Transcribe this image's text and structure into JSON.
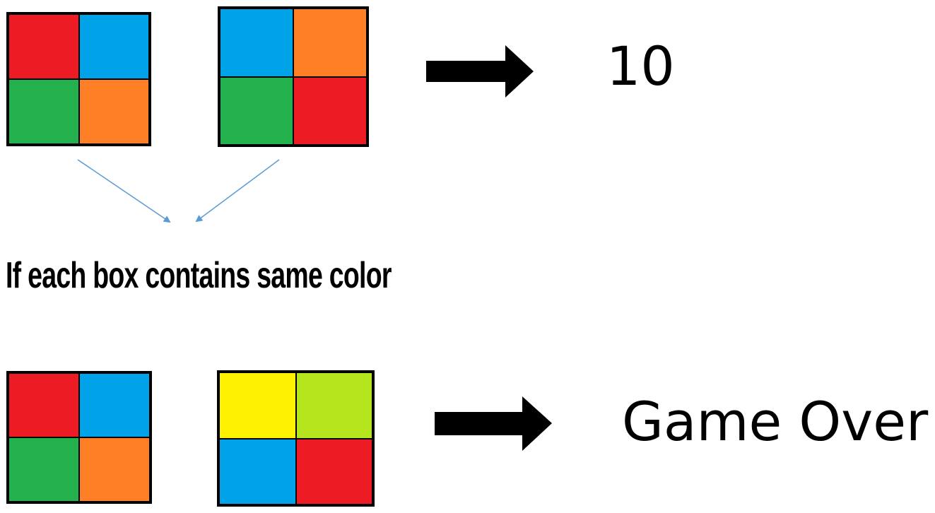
{
  "colors": {
    "red": "#ed1c24",
    "blue": "#00a2e8",
    "green": "#22b14c",
    "orange": "#ff7f27",
    "yellow": "#fff200",
    "lime": "#b5e61d",
    "arrow_black": "#000000",
    "connector_blue": "#5b9bd5"
  },
  "grids": {
    "top_left": [
      "red",
      "blue",
      "green",
      "orange"
    ],
    "top_right": [
      "blue",
      "orange",
      "green",
      "red"
    ],
    "bottom_left": [
      "red",
      "blue",
      "green",
      "orange"
    ],
    "bottom_right": [
      "yellow",
      "lime",
      "blue",
      "red"
    ]
  },
  "text": {
    "score": "10",
    "condition": "If each box contains same color",
    "game_over": "Game Over"
  },
  "icons": {
    "top_arrow": "right-arrow-icon",
    "bottom_arrow": "right-arrow-icon"
  }
}
